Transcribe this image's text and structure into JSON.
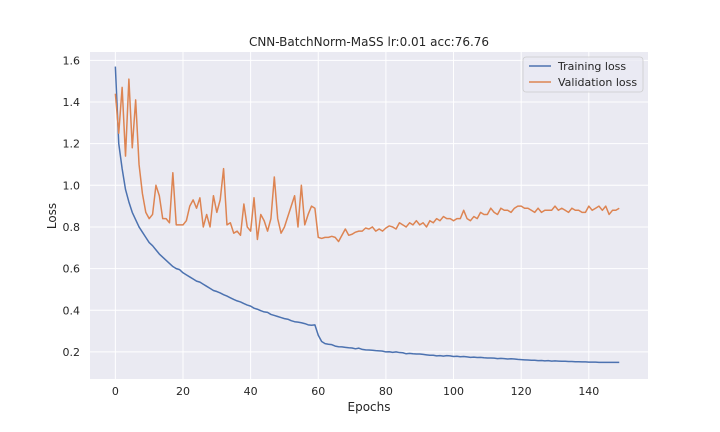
{
  "chart_data": {
    "type": "line",
    "title": "CNN-BatchNorm-MaSS lr:0.01 acc:76.76",
    "xlabel": "Epochs",
    "ylabel": "Loss",
    "xlim": [
      -7.5,
      157.5
    ],
    "ylim": [
      0.07,
      1.64
    ],
    "xticks": [
      0,
      20,
      40,
      60,
      80,
      100,
      120,
      140
    ],
    "yticks": [
      0.2,
      0.4,
      0.6,
      0.8,
      1.0,
      1.2,
      1.4,
      1.6
    ],
    "ytick_labels": [
      "0.2",
      "0.4",
      "0.6",
      "0.8",
      "1.0",
      "1.2",
      "1.4",
      "1.6"
    ],
    "grid": true,
    "legend": "top-right",
    "colors": {
      "background": "#eaeaf2",
      "grid": "#ffffff",
      "train": "#4c72b0",
      "val": "#dd8452"
    },
    "series": [
      {
        "name": "Training loss",
        "color": "#4c72b0",
        "x": [
          0,
          1,
          2,
          3,
          4,
          5,
          6,
          7,
          8,
          9,
          10,
          11,
          12,
          13,
          14,
          15,
          16,
          17,
          18,
          19,
          20,
          21,
          22,
          23,
          24,
          25,
          26,
          27,
          28,
          29,
          30,
          31,
          32,
          33,
          34,
          35,
          36,
          37,
          38,
          39,
          40,
          41,
          42,
          43,
          44,
          45,
          46,
          47,
          48,
          49,
          50,
          51,
          52,
          53,
          54,
          55,
          56,
          57,
          58,
          59,
          60,
          61,
          62,
          63,
          64,
          65,
          66,
          67,
          68,
          69,
          70,
          71,
          72,
          73,
          74,
          75,
          76,
          77,
          78,
          79,
          80,
          81,
          82,
          83,
          84,
          85,
          86,
          87,
          88,
          89,
          90,
          91,
          92,
          93,
          94,
          95,
          96,
          97,
          98,
          99,
          100,
          101,
          102,
          103,
          104,
          105,
          106,
          107,
          108,
          109,
          110,
          111,
          112,
          113,
          114,
          115,
          116,
          117,
          118,
          119,
          120,
          121,
          122,
          123,
          124,
          125,
          126,
          127,
          128,
          129,
          130,
          131,
          132,
          133,
          134,
          135,
          136,
          137,
          138,
          139,
          140,
          141,
          142,
          143,
          144,
          145,
          146,
          147,
          148,
          149
        ],
        "values": [
          1.57,
          1.2,
          1.08,
          0.98,
          0.92,
          0.87,
          0.835,
          0.8,
          0.775,
          0.75,
          0.725,
          0.71,
          0.69,
          0.67,
          0.655,
          0.64,
          0.625,
          0.61,
          0.6,
          0.595,
          0.58,
          0.57,
          0.56,
          0.55,
          0.54,
          0.535,
          0.525,
          0.515,
          0.505,
          0.495,
          0.49,
          0.483,
          0.475,
          0.468,
          0.46,
          0.452,
          0.445,
          0.44,
          0.432,
          0.425,
          0.42,
          0.41,
          0.405,
          0.398,
          0.392,
          0.39,
          0.38,
          0.375,
          0.37,
          0.365,
          0.36,
          0.357,
          0.35,
          0.345,
          0.343,
          0.34,
          0.336,
          0.33,
          0.328,
          0.33,
          0.28,
          0.25,
          0.24,
          0.237,
          0.235,
          0.228,
          0.225,
          0.224,
          0.222,
          0.22,
          0.219,
          0.215,
          0.218,
          0.212,
          0.21,
          0.209,
          0.208,
          0.206,
          0.205,
          0.204,
          0.2,
          0.201,
          0.198,
          0.2,
          0.197,
          0.196,
          0.191,
          0.193,
          0.191,
          0.19,
          0.19,
          0.188,
          0.186,
          0.184,
          0.184,
          0.181,
          0.182,
          0.18,
          0.182,
          0.181,
          0.178,
          0.179,
          0.177,
          0.178,
          0.176,
          0.174,
          0.175,
          0.173,
          0.174,
          0.172,
          0.171,
          0.171,
          0.17,
          0.168,
          0.169,
          0.168,
          0.166,
          0.167,
          0.166,
          0.164,
          0.163,
          0.162,
          0.161,
          0.16,
          0.16,
          0.158,
          0.159,
          0.157,
          0.158,
          0.156,
          0.157,
          0.156,
          0.155,
          0.155,
          0.154,
          0.154,
          0.153,
          0.153,
          0.152,
          0.152,
          0.151,
          0.151,
          0.151,
          0.15,
          0.15,
          0.15,
          0.15,
          0.15,
          0.15,
          0.15
        ]
      },
      {
        "name": "Validation loss",
        "color": "#dd8452",
        "x": [
          0,
          1,
          2,
          3,
          4,
          5,
          6,
          7,
          8,
          9,
          10,
          11,
          12,
          13,
          14,
          15,
          16,
          17,
          18,
          19,
          20,
          21,
          22,
          23,
          24,
          25,
          26,
          27,
          28,
          29,
          30,
          31,
          32,
          33,
          34,
          35,
          36,
          37,
          38,
          39,
          40,
          41,
          42,
          43,
          44,
          45,
          46,
          47,
          48,
          49,
          50,
          51,
          52,
          53,
          54,
          55,
          56,
          57,
          58,
          59,
          60,
          61,
          62,
          63,
          64,
          65,
          66,
          67,
          68,
          69,
          70,
          71,
          72,
          73,
          74,
          75,
          76,
          77,
          78,
          79,
          80,
          81,
          82,
          83,
          84,
          85,
          86,
          87,
          88,
          89,
          90,
          91,
          92,
          93,
          94,
          95,
          96,
          97,
          98,
          99,
          100,
          101,
          102,
          103,
          104,
          105,
          106,
          107,
          108,
          109,
          110,
          111,
          112,
          113,
          114,
          115,
          116,
          117,
          118,
          119,
          120,
          121,
          122,
          123,
          124,
          125,
          126,
          127,
          128,
          129,
          130,
          131,
          132,
          133,
          134,
          135,
          136,
          137,
          138,
          139,
          140,
          141,
          142,
          143,
          144,
          145,
          146,
          147,
          148,
          149
        ],
        "values": [
          1.44,
          1.25,
          1.47,
          1.14,
          1.51,
          1.18,
          1.41,
          1.1,
          0.96,
          0.87,
          0.84,
          0.86,
          1.0,
          0.95,
          0.84,
          0.84,
          0.82,
          1.06,
          0.81,
          0.81,
          0.81,
          0.83,
          0.9,
          0.93,
          0.89,
          0.94,
          0.8,
          0.86,
          0.8,
          0.95,
          0.87,
          0.93,
          1.08,
          0.81,
          0.82,
          0.77,
          0.78,
          0.76,
          0.91,
          0.8,
          0.78,
          0.94,
          0.74,
          0.86,
          0.83,
          0.78,
          0.84,
          1.04,
          0.84,
          0.77,
          0.8,
          0.85,
          0.9,
          0.95,
          0.8,
          1.0,
          0.81,
          0.86,
          0.9,
          0.89,
          0.75,
          0.745,
          0.75,
          0.75,
          0.755,
          0.75,
          0.73,
          0.76,
          0.79,
          0.76,
          0.765,
          0.775,
          0.78,
          0.78,
          0.795,
          0.79,
          0.8,
          0.78,
          0.79,
          0.78,
          0.795,
          0.805,
          0.8,
          0.79,
          0.82,
          0.81,
          0.8,
          0.82,
          0.81,
          0.83,
          0.81,
          0.82,
          0.8,
          0.83,
          0.82,
          0.84,
          0.83,
          0.85,
          0.84,
          0.84,
          0.83,
          0.84,
          0.84,
          0.88,
          0.84,
          0.83,
          0.85,
          0.84,
          0.87,
          0.86,
          0.86,
          0.89,
          0.87,
          0.86,
          0.89,
          0.88,
          0.88,
          0.87,
          0.89,
          0.9,
          0.9,
          0.89,
          0.89,
          0.88,
          0.87,
          0.89,
          0.87,
          0.88,
          0.88,
          0.88,
          0.9,
          0.88,
          0.89,
          0.88,
          0.87,
          0.89,
          0.88,
          0.88,
          0.87,
          0.87,
          0.9,
          0.88,
          0.89,
          0.9,
          0.88,
          0.9,
          0.86,
          0.88,
          0.88,
          0.89
        ]
      }
    ]
  }
}
